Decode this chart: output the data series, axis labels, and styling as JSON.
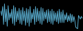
{
  "values": [
    20,
    15,
    25,
    5,
    28,
    8,
    22,
    3,
    26,
    10,
    18,
    12,
    22,
    6,
    26,
    4,
    24,
    8,
    20,
    10,
    23,
    6,
    21,
    5,
    24,
    9,
    20,
    4,
    23,
    7,
    22,
    3,
    25,
    7,
    18,
    11,
    22,
    5,
    25,
    8,
    23,
    9,
    20,
    6,
    24,
    5,
    23,
    9,
    19,
    11,
    21,
    7,
    22,
    8,
    20,
    6,
    22,
    5,
    20,
    9,
    18,
    8,
    20,
    6,
    22,
    7,
    19,
    7,
    21,
    7,
    16,
    10,
    18,
    8,
    15,
    9,
    17,
    7,
    16,
    8,
    14,
    9,
    2,
    1,
    0.2,
    15,
    13,
    11,
    14,
    12
  ],
  "line_color": "#5aaed0",
  "background_color": "#000000",
  "linewidth": 0.7
}
